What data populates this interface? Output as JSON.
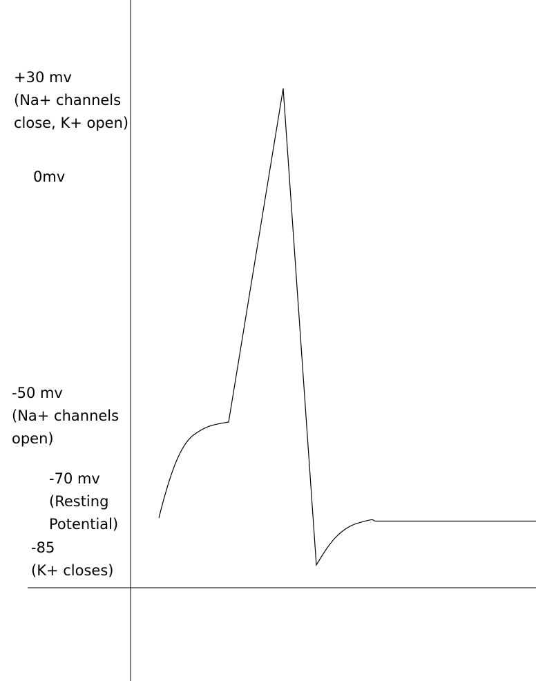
{
  "chart_data": {
    "type": "line",
    "title": "",
    "xlabel": "",
    "ylabel": "",
    "grid": false,
    "colors": {
      "line": "#000000",
      "axis": "#000000",
      "background": "#ffffff"
    },
    "y_annotations": [
      {
        "lines": [
          "+30 mv",
          "(Na+ channels",
          "close, K+ open)"
        ]
      },
      {
        "lines": [
          "0mv"
        ]
      },
      {
        "lines": [
          "-50 mv",
          "(Na+ channels",
          "open)"
        ]
      },
      {
        "lines": [
          "-70 mv",
          "(Resting",
          "Potential)"
        ]
      },
      {
        "lines": [
          "-85",
          "(K+ closes)"
        ]
      }
    ],
    "series": [
      {
        "values_mv": [
          -70,
          -61,
          -55,
          -52.5,
          -51,
          -50,
          30,
          -85,
          -77,
          -73.5,
          -71.5,
          -71,
          -71
        ]
      }
    ]
  }
}
